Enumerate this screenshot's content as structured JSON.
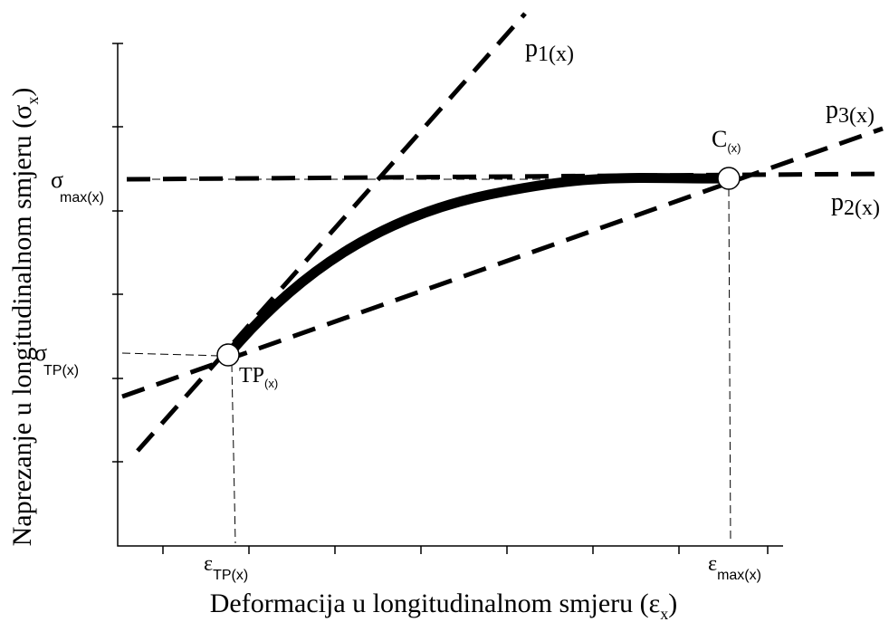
{
  "axes": {
    "y_label": {
      "base": "Naprezanje u longitudinalnom smjeru (σ",
      "sub": "x",
      "end": ")"
    },
    "x_label": {
      "base": "Deformacija u longitudinalnom smjeru (ε",
      "sub": "x",
      "end": ")"
    }
  },
  "labels": {
    "sigma_max": {
      "base": "σ",
      "sub": "max(x)"
    },
    "sigma_tp": {
      "base": "σ",
      "sub": "TP(x)"
    },
    "eps_tp": {
      "base": "ε",
      "sub": "TP(x)"
    },
    "eps_max": {
      "base": "ε",
      "sub": "max(x)"
    },
    "tp": {
      "base": "TP",
      "sub": "(x)"
    },
    "c": {
      "base": "C",
      "sub": "(x)"
    },
    "p1": {
      "base": "p",
      "sub": "1(x)"
    },
    "p2": {
      "base": "p",
      "sub": "2(x)"
    },
    "p3": {
      "base": "p",
      "sub": "3(x)"
    }
  }
}
